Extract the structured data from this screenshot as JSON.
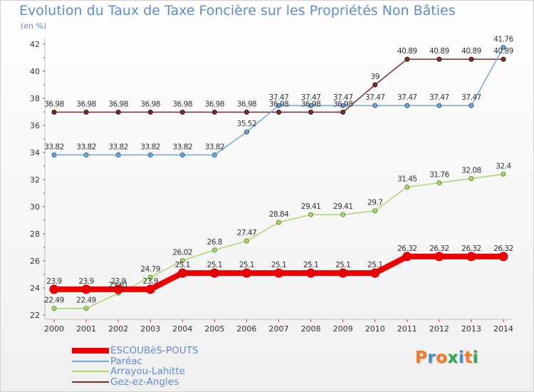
{
  "header": {
    "title": "Evolution du Taux de Taxe Foncière sur les Propriétés Non Bâties",
    "unit": "(en %)"
  },
  "logo": {
    "text": "Proxiti",
    "colors": [
      "#f47a20",
      "#3f8fd2",
      "#f47a20",
      "#2fa64a",
      "#3f8fd2",
      "#f47a20",
      "#2fa64a"
    ]
  },
  "chart_data": {
    "type": "line",
    "title": "Evolution du Taux de Taxe Foncière sur les Propriétés Non Bâties",
    "ylabel": "(en %)",
    "xlabel": "",
    "x": [
      "2000",
      "2001",
      "2002",
      "2003",
      "2004",
      "2005",
      "2006",
      "2007",
      "2008",
      "2009",
      "2010",
      "2011",
      "2012",
      "2013",
      "2014"
    ],
    "ylim": [
      22,
      42
    ],
    "yticks": [
      22,
      24,
      26,
      28,
      30,
      32,
      34,
      36,
      38,
      40,
      42
    ],
    "grid": false,
    "legend": "bottom-left",
    "series": [
      {
        "name": "ESCOUBèS-POUTS",
        "color": "#ee0000",
        "values": [
          23.9,
          23.9,
          23.9,
          23.9,
          25.1,
          25.1,
          25.1,
          25.1,
          25.1,
          25.1,
          25.1,
          26.32,
          26.32,
          26.32,
          26.32
        ],
        "labels": [
          "23.9",
          "23.9",
          "23.9",
          "23.9",
          "25.1",
          "25.1",
          "25.1",
          "25.1",
          "25.1",
          "25.1",
          "25.1",
          "26.32",
          "26.32",
          "26.32",
          "26.32"
        ]
      },
      {
        "name": "Paréac",
        "color": "#6fa8dc",
        "values": [
          33.82,
          33.82,
          33.82,
          33.82,
          33.82,
          33.82,
          35.52,
          37.47,
          37.47,
          37.47,
          37.47,
          37.47,
          37.47,
          37.47,
          41.76
        ],
        "labels": [
          "33.82",
          "33.82",
          "33.82",
          "33.82",
          "33.82",
          "33.82",
          "35.52",
          "37.47",
          "37.47",
          "37.47",
          "37.47",
          "37.47",
          "37.47",
          "37.47",
          "41.76"
        ]
      },
      {
        "name": "Arrayou-Lahitte",
        "color": "#a8d86e",
        "values": [
          22.49,
          22.49,
          23.61,
          24.79,
          26.02,
          26.8,
          27.47,
          28.84,
          29.41,
          29.41,
          29.7,
          31.45,
          31.76,
          32.08,
          32.4
        ],
        "labels": [
          "22.49",
          "22.49",
          "23.61",
          "24.79",
          "26.02",
          "26.8",
          "27.47",
          "28.84",
          "29.41",
          "29.41",
          "29.7",
          "31.45",
          "31.76",
          "32.08",
          "32.4"
        ]
      },
      {
        "name": "Gez-ez-Angles",
        "color": "#7a2e2e",
        "values": [
          36.98,
          36.98,
          36.98,
          36.98,
          36.98,
          36.98,
          36.98,
          36.98,
          36.98,
          36.98,
          39,
          40.89,
          40.89,
          40.89,
          40.89
        ],
        "labels": [
          "36.98",
          "36.98",
          "36.98",
          "36.98",
          "36.98",
          "36.98",
          "36.98",
          "36.98",
          "36.98",
          "36.98",
          "39",
          "40.89",
          "40.89",
          "40.89",
          "40.89"
        ]
      }
    ]
  }
}
